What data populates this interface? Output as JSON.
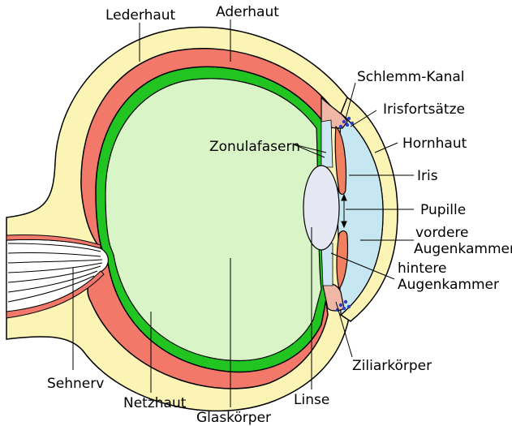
{
  "diagram": {
    "labels": {
      "lederhaut": "Lederhaut",
      "aderhaut": "Aderhaut",
      "schlemm_kanal": "Schlemm-Kanal",
      "irisfortsaetze": "Irisfortsätze",
      "hornhaut": "Hornhaut",
      "zonulafasern": "Zonulafasern",
      "iris": "Iris",
      "pupille": "Pupille",
      "vordere_line1": "vordere",
      "vordere_line2": "Augenkammer",
      "hintere_line1": "hintere",
      "hintere_line2": "Augenkammer",
      "ziliarkoerper": "Ziliarkörper",
      "sehnerv": "Sehnerv",
      "netzhaut": "Netzhaut",
      "glaskoerper": "Glaskörper",
      "linse": "Linse"
    }
  },
  "colors": {
    "sclera": "#fbf4b4",
    "choroid": "#f2796a",
    "retina": "#22c422",
    "vitreous": "#d9f5c7",
    "cornea_fill": "#fbf4b4",
    "anterior_chamber": "#c6e7f2",
    "lens": "#e5e8f2",
    "iris": "#f08060",
    "ciliary": "#f0b6a6",
    "dots": "#2b3fbf",
    "outline": "#000000"
  }
}
